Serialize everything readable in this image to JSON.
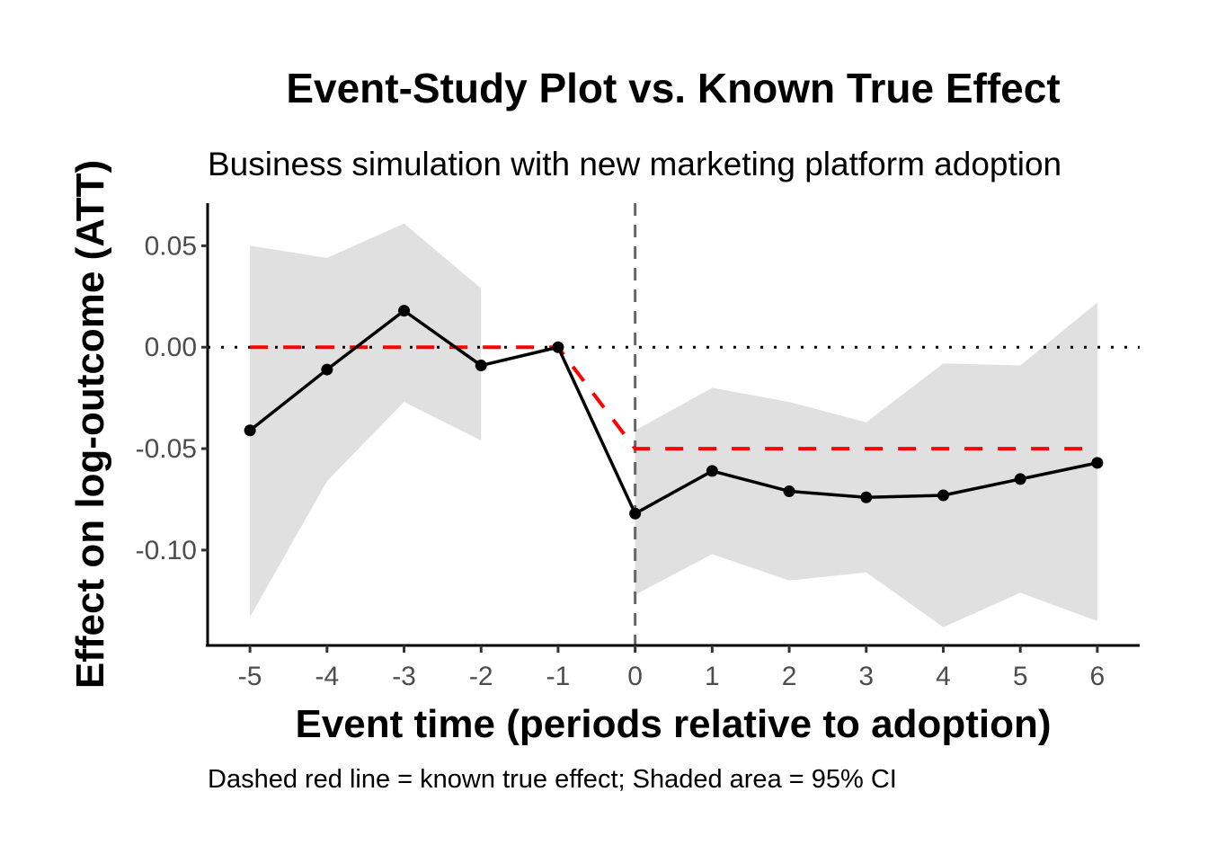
{
  "chart_data": {
    "type": "line",
    "title": "Event-Study Plot vs. Known True Effect",
    "subtitle": "Business simulation with new marketing platform adoption",
    "xlabel": "Event time (periods relative to adoption)",
    "ylabel": "Effect on log-outcome (ATT)",
    "caption": "Dashed red line = known true effect; Shaded area = 95% CI",
    "x": [
      -5,
      -4,
      -3,
      -2,
      -1,
      0,
      1,
      2,
      3,
      4,
      5,
      6
    ],
    "xticks": [
      "-5",
      "-4",
      "-3",
      "-2",
      "-1",
      "0",
      "1",
      "2",
      "3",
      "4",
      "5",
      "6"
    ],
    "yticks": [
      0.05,
      0.0,
      -0.05,
      -0.1
    ],
    "ytick_labels": [
      "0.05",
      "0.00",
      "-0.05",
      "-0.10"
    ],
    "xlim": [
      -5.55,
      6.55
    ],
    "ylim": [
      -0.147,
      0.071
    ],
    "series": [
      {
        "name": "Estimated ATT",
        "color": "#000000",
        "values": [
          -0.041,
          -0.011,
          0.018,
          -0.009,
          0.0,
          -0.082,
          -0.061,
          -0.071,
          -0.074,
          -0.073,
          -0.065,
          -0.057
        ]
      },
      {
        "name": "Known true effect",
        "color": "#ff0000",
        "style": "dashed",
        "values": [
          0,
          0,
          0,
          0,
          0,
          -0.05,
          -0.05,
          -0.05,
          -0.05,
          -0.05,
          -0.05,
          -0.05
        ]
      }
    ],
    "ci": {
      "name": "95% CI",
      "color": "#e0e0e0",
      "segments": [
        {
          "x": [
            -5,
            -4,
            -3,
            -2
          ],
          "lower": [
            -0.133,
            -0.066,
            -0.027,
            -0.046
          ],
          "upper": [
            0.05,
            0.044,
            0.061,
            0.029
          ]
        },
        {
          "x": [
            0,
            1,
            2,
            3,
            4,
            5,
            6
          ],
          "lower": [
            -0.122,
            -0.102,
            -0.115,
            -0.111,
            -0.138,
            -0.121,
            -0.135
          ],
          "upper": [
            -0.041,
            -0.02,
            -0.027,
            -0.037,
            -0.008,
            -0.009,
            0.022
          ]
        }
      ]
    },
    "reference_lines": {
      "hline_y": 0,
      "hline_style": "dotted",
      "vline_x": 0,
      "vline_style": "dashed",
      "vline_color": "#666666"
    },
    "grid": false,
    "legend": "none"
  }
}
